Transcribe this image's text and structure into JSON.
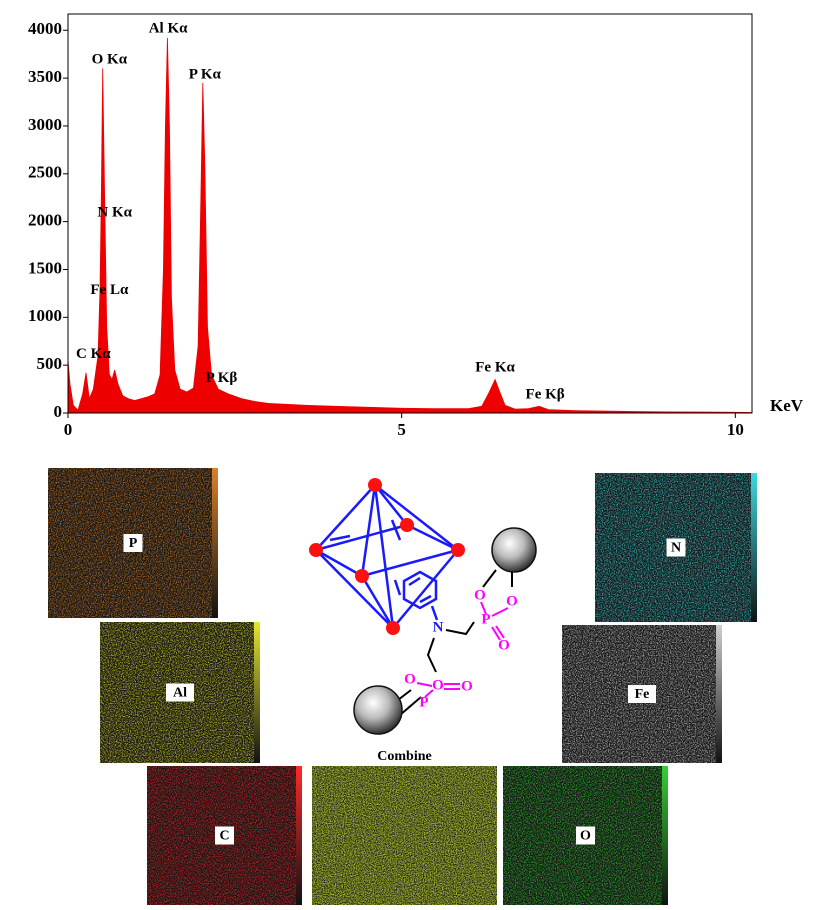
{
  "chart_data": {
    "type": "area",
    "x_label": "KeV",
    "color": "#ee0000",
    "xlim": [
      0,
      10.25
    ],
    "ylim": [
      0,
      4170
    ],
    "xticks": [
      0,
      5,
      10
    ],
    "yticks": [
      0,
      500,
      1000,
      1500,
      2000,
      2500,
      3000,
      3500,
      4000
    ],
    "x": [
      0.0,
      0.03,
      0.08,
      0.15,
      0.22,
      0.27,
      0.32,
      0.38,
      0.45,
      0.48,
      0.5,
      0.52,
      0.55,
      0.58,
      0.62,
      0.66,
      0.7,
      0.75,
      0.82,
      0.9,
      1.0,
      1.1,
      1.2,
      1.3,
      1.38,
      1.43,
      1.46,
      1.49,
      1.52,
      1.55,
      1.6,
      1.68,
      1.78,
      1.88,
      1.95,
      1.99,
      2.02,
      2.05,
      2.09,
      2.15,
      2.25,
      2.4,
      2.6,
      2.8,
      3.0,
      3.3,
      3.6,
      4.0,
      4.5,
      5.0,
      5.5,
      6.0,
      6.2,
      6.3,
      6.4,
      6.47,
      6.55,
      6.7,
      6.9,
      7.06,
      7.2,
      7.6,
      8.0,
      8.5,
      9.0,
      9.5,
      10.0,
      10.25
    ],
    "values": [
      550,
      300,
      80,
      30,
      200,
      420,
      150,
      250,
      600,
      1300,
      2300,
      3600,
      2200,
      900,
      400,
      350,
      450,
      300,
      180,
      150,
      130,
      150,
      170,
      200,
      400,
      1500,
      3000,
      3920,
      3000,
      1200,
      450,
      250,
      220,
      260,
      700,
      2200,
      3450,
      2600,
      900,
      400,
      250,
      200,
      150,
      120,
      100,
      90,
      80,
      70,
      60,
      50,
      45,
      45,
      70,
      200,
      350,
      220,
      80,
      40,
      45,
      70,
      35,
      25,
      20,
      15,
      12,
      10,
      8,
      5
    ],
    "annotations": [
      {
        "text": "Al Kα",
        "x": 1.5,
        "y": 4010
      },
      {
        "text": "O Kα",
        "x": 0.62,
        "y": 3690
      },
      {
        "text": "P Kα",
        "x": 2.05,
        "y": 3530
      },
      {
        "text": "N Kα",
        "x": 0.7,
        "y": 2090
      },
      {
        "text": "Fe Lα",
        "x": 0.62,
        "y": 1280
      },
      {
        "text": "C Kα",
        "x": 0.38,
        "y": 610
      },
      {
        "text": "P Kβ",
        "x": 2.3,
        "y": 360
      },
      {
        "text": "Fe Kα",
        "x": 6.4,
        "y": 470
      },
      {
        "text": "Fe Kβ",
        "x": 7.15,
        "y": 190
      }
    ]
  },
  "maps": [
    {
      "label": "P",
      "color": "#d9822b"
    },
    {
      "label": "N",
      "color": "#3fd8e0"
    },
    {
      "label": "Al",
      "color": "#e6e632"
    },
    {
      "label": "Fe",
      "color": "#cfcfcf"
    },
    {
      "label": "C",
      "color": "#ff2a2a"
    },
    {
      "label": "Combine",
      "color": "#9ccf3a"
    },
    {
      "label": "O",
      "color": "#35d035"
    }
  ],
  "diagram": {
    "labels": [
      "N",
      "O",
      "O",
      "P",
      "O",
      "O",
      "P",
      "O",
      "O"
    ]
  }
}
